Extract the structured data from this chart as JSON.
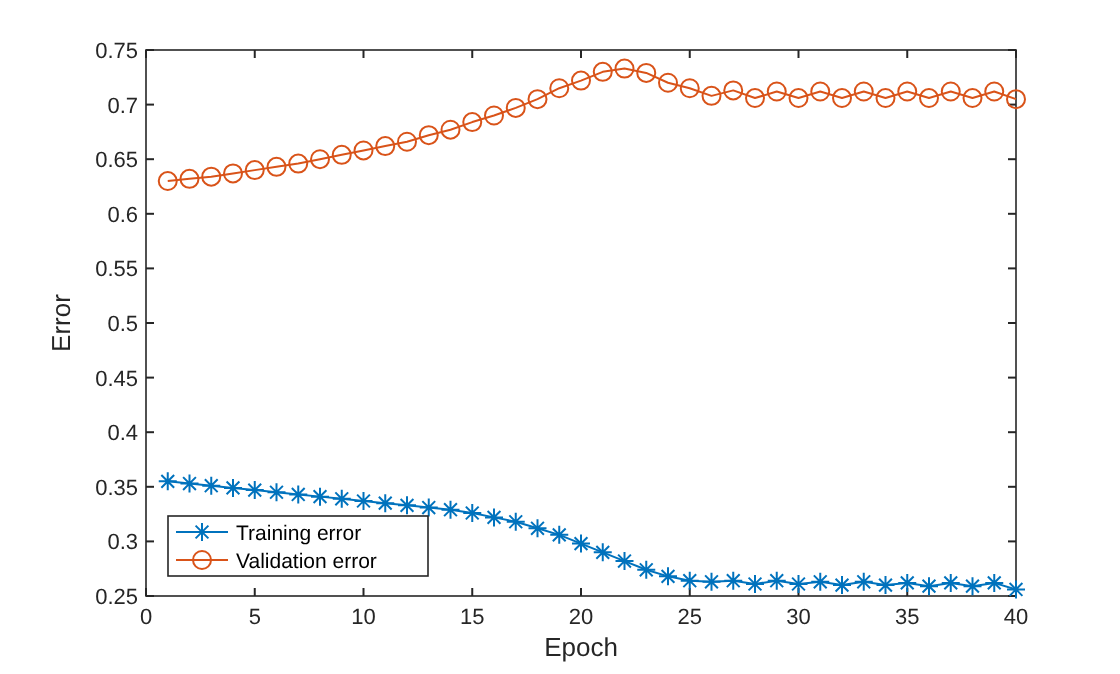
{
  "chart_data": {
    "type": "line",
    "xlabel": "Epoch",
    "ylabel": "Error",
    "x": [
      1,
      2,
      3,
      4,
      5,
      6,
      7,
      8,
      9,
      10,
      11,
      12,
      13,
      14,
      15,
      16,
      17,
      18,
      19,
      20,
      21,
      22,
      23,
      24,
      25,
      26,
      27,
      28,
      29,
      30,
      31,
      32,
      33,
      34,
      35,
      36,
      37,
      38,
      39,
      40
    ],
    "series": [
      {
        "name": "Training error",
        "color": "#0072bd",
        "marker": "cross",
        "values": [
          0.355,
          0.353,
          0.351,
          0.349,
          0.347,
          0.345,
          0.343,
          0.341,
          0.339,
          0.337,
          0.335,
          0.333,
          0.331,
          0.329,
          0.326,
          0.322,
          0.318,
          0.312,
          0.306,
          0.298,
          0.29,
          0.282,
          0.274,
          0.268,
          0.264,
          0.263,
          0.264,
          0.261,
          0.264,
          0.261,
          0.263,
          0.26,
          0.263,
          0.26,
          0.262,
          0.259,
          0.262,
          0.259,
          0.262,
          0.256
        ]
      },
      {
        "name": "Validation error",
        "color": "#d95319",
        "marker": "circle",
        "values": [
          0.63,
          0.632,
          0.634,
          0.637,
          0.64,
          0.643,
          0.646,
          0.65,
          0.654,
          0.658,
          0.662,
          0.666,
          0.672,
          0.677,
          0.684,
          0.69,
          0.697,
          0.705,
          0.715,
          0.722,
          0.73,
          0.733,
          0.729,
          0.72,
          0.715,
          0.708,
          0.713,
          0.706,
          0.712,
          0.706,
          0.712,
          0.706,
          0.712,
          0.706,
          0.712,
          0.706,
          0.712,
          0.706,
          0.712,
          0.705
        ]
      }
    ],
    "xlim": [
      0,
      40
    ],
    "xticks": [
      0,
      5,
      10,
      15,
      20,
      25,
      30,
      35,
      40
    ],
    "ylim": [
      0.25,
      0.75
    ],
    "yticks": [
      0.25,
      0.3,
      0.35,
      0.4,
      0.45,
      0.5,
      0.55,
      0.6,
      0.65,
      0.7,
      0.75
    ],
    "legend": "bottom left",
    "line_style": "solid"
  }
}
